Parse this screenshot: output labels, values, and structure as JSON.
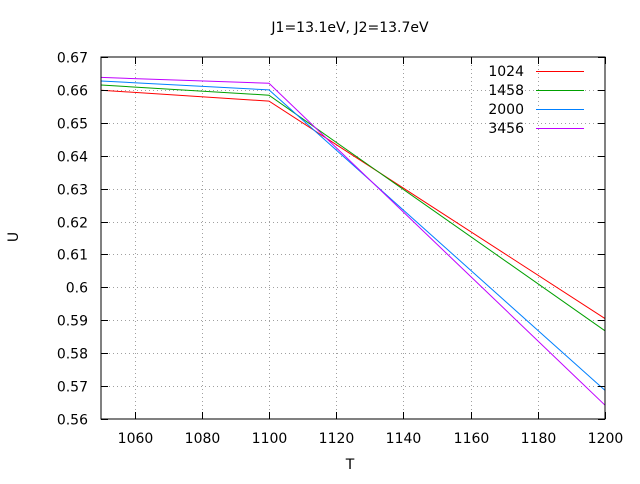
{
  "chart_data": {
    "type": "line",
    "title": "J1=13.1eV, J2=13.7eV",
    "xlabel": "T",
    "ylabel": "U",
    "xlim": [
      1050,
      1200
    ],
    "ylim": [
      0.56,
      0.67
    ],
    "xticks": [
      1060,
      1080,
      1100,
      1120,
      1140,
      1160,
      1180,
      1200
    ],
    "yticks": [
      0.56,
      0.57,
      0.58,
      0.59,
      0.6,
      0.61,
      0.62,
      0.63,
      0.64,
      0.65,
      0.66,
      0.67
    ],
    "xtick_labels": [
      "1060",
      "1080",
      "1100",
      "1120",
      "1140",
      "1160",
      "1180",
      "1200"
    ],
    "ytick_labels": [
      "0.56",
      "0.57",
      "0.58",
      "0.59",
      "0.6",
      "0.61",
      "0.62",
      "0.63",
      "0.64",
      "0.65",
      "0.66",
      "0.67"
    ],
    "grid": true,
    "legend_position": "top-right",
    "series": [
      {
        "name": "1024",
        "color": "#ff0000",
        "x": [
          1050,
          1100,
          1200
        ],
        "y": [
          0.6599,
          0.6566,
          0.5905
        ]
      },
      {
        "name": "1458",
        "color": "#00a000",
        "x": [
          1050,
          1100,
          1200
        ],
        "y": [
          0.6615,
          0.6584,
          0.5868
        ]
      },
      {
        "name": "2000",
        "color": "#0080ff",
        "x": [
          1050,
          1100,
          1200
        ],
        "y": [
          0.6627,
          0.66,
          0.5687
        ]
      },
      {
        "name": "3456",
        "color": "#c000ff",
        "x": [
          1050,
          1100,
          1200
        ],
        "y": [
          0.6638,
          0.662,
          0.5642
        ]
      }
    ]
  }
}
